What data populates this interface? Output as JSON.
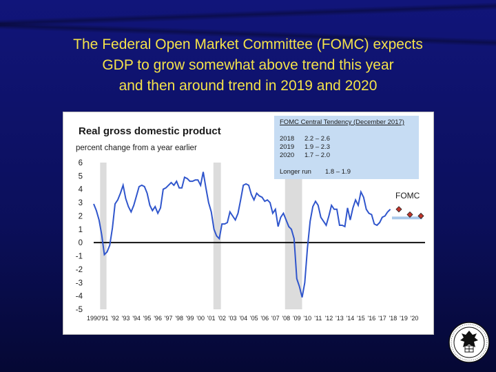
{
  "slide": {
    "title_lines": [
      "The Federal Open Market Committee (FOMC) expects",
      "GDP to grow somewhat above trend this year",
      "and then around trend in 2019 and 2020"
    ]
  },
  "fomc_box": {
    "header": "FOMC Central Tendency (December 2017)",
    "rows": [
      {
        "year": "2018",
        "range": "2.2 – 2.6"
      },
      {
        "year": "2019",
        "range": "1.9 – 2.3"
      },
      {
        "year": "2020",
        "range": "1.7 – 2.0"
      }
    ],
    "longer_run": {
      "label": "Longer run",
      "range": "1.8 – 1.9"
    }
  },
  "colors": {
    "background": "#0b0f4a",
    "title": "#f4e24a",
    "line": "#2f55cc",
    "recession": "#dcdcdc",
    "projection": "#c0342a",
    "longer_run": "#a9c8ea",
    "box": "#c6dcf3"
  },
  "icons": {
    "seal": "federal-reserve-seal-icon"
  },
  "chart_data": {
    "type": "line",
    "title": "Real gross domestic product",
    "subtitle": "percent change from a year earlier",
    "xlim": [
      1990,
      2021
    ],
    "ylim": [
      -5,
      6
    ],
    "yticks": [
      6,
      5,
      4,
      3,
      2,
      1,
      0,
      -1,
      -2,
      -3,
      -4,
      -5
    ],
    "xtick_labels": [
      "1990",
      "'91",
      "'92",
      "'93",
      "'94",
      "'95",
      "'96",
      "'97",
      "'98",
      "'99",
      "'00",
      "'01",
      "'02",
      "'03",
      "'04",
      "'05",
      "'06",
      "'07",
      "'08",
      "'09",
      "'10",
      "'11",
      "'12",
      "'13",
      "'14",
      "'15",
      "'16",
      "'17",
      "'18",
      "'19",
      "'20"
    ],
    "recessions": [
      [
        1990.6,
        1991.2
      ],
      [
        2001.2,
        2001.9
      ],
      [
        2007.9,
        2009.5
      ]
    ],
    "series": [
      {
        "x": [
          1990.0,
          1990.25,
          1990.5,
          1990.75,
          1991.0,
          1991.25,
          1991.5,
          1991.75,
          1992.0,
          1992.25,
          1992.5,
          1992.75,
          1993.0,
          1993.25,
          1993.5,
          1993.75,
          1994.0,
          1994.25,
          1994.5,
          1994.75,
          1995.0,
          1995.25,
          1995.5,
          1995.75,
          1996.0,
          1996.25,
          1996.5,
          1996.75,
          1997.0,
          1997.25,
          1997.5,
          1997.75,
          1998.0,
          1998.25,
          1998.5,
          1998.75,
          1999.0,
          1999.25,
          1999.5,
          1999.75,
          2000.0,
          2000.25,
          2000.5,
          2000.75,
          2001.0,
          2001.25,
          2001.5,
          2001.75,
          2002.0,
          2002.25,
          2002.5,
          2002.75,
          2003.0,
          2003.25,
          2003.5,
          2003.75,
          2004.0,
          2004.25,
          2004.5,
          2004.75,
          2005.0,
          2005.25,
          2005.5,
          2005.75,
          2006.0,
          2006.25,
          2006.5,
          2006.75,
          2007.0,
          2007.25,
          2007.5,
          2007.75,
          2008.0,
          2008.25,
          2008.5,
          2008.75,
          2009.0,
          2009.25,
          2009.5,
          2009.75,
          2010.0,
          2010.25,
          2010.5,
          2010.75,
          2011.0,
          2011.25,
          2011.5,
          2011.75,
          2012.0,
          2012.25,
          2012.5,
          2012.75,
          2013.0,
          2013.25,
          2013.5,
          2013.75,
          2014.0,
          2014.25,
          2014.5,
          2014.75,
          2015.0,
          2015.25,
          2015.5,
          2015.75,
          2016.0,
          2016.25,
          2016.5,
          2016.75,
          2017.0,
          2017.25,
          2017.5
        ],
        "y": [
          2.9,
          2.4,
          1.7,
          0.6,
          -0.9,
          -0.7,
          -0.2,
          1.1,
          2.9,
          3.2,
          3.7,
          4.3,
          3.3,
          2.7,
          2.3,
          2.8,
          3.5,
          4.2,
          4.3,
          4.2,
          3.7,
          2.8,
          2.4,
          2.7,
          2.2,
          2.6,
          4.0,
          4.1,
          4.3,
          4.5,
          4.3,
          4.6,
          4.1,
          4.1,
          4.9,
          4.8,
          4.6,
          4.6,
          4.7,
          4.7,
          4.3,
          5.3,
          4.1,
          3.0,
          2.3,
          1.0,
          0.5,
          0.3,
          1.4,
          1.4,
          1.5,
          2.3,
          2.0,
          1.7,
          2.2,
          3.2,
          4.3,
          4.4,
          4.3,
          3.6,
          3.2,
          3.7,
          3.5,
          3.4,
          3.1,
          3.2,
          3.0,
          2.2,
          2.5,
          1.2,
          1.9,
          2.2,
          1.7,
          1.2,
          1.0,
          0.3,
          -2.7,
          -3.3,
          -4.1,
          -3.0,
          -0.4,
          1.6,
          2.7,
          3.1,
          2.8,
          1.9,
          1.6,
          1.3,
          2.0,
          2.8,
          2.5,
          2.5,
          1.3,
          1.3,
          1.2,
          2.6,
          1.7,
          2.6,
          3.2,
          2.8,
          3.8,
          3.4,
          2.5,
          2.2,
          2.1,
          1.4,
          1.3,
          1.5,
          1.9,
          2.0,
          2.3
        ],
        "extension": {
          "x": [
            2017.5,
            2017.75
          ],
          "y": [
            2.3,
            2.5
          ]
        }
      }
    ],
    "projections": {
      "label": "FOMC",
      "x": [
        2018,
        2019,
        2020
      ],
      "y": [
        2.5,
        2.1,
        2.0
      ],
      "longer_run_band": [
        1.8,
        1.9
      ]
    }
  }
}
